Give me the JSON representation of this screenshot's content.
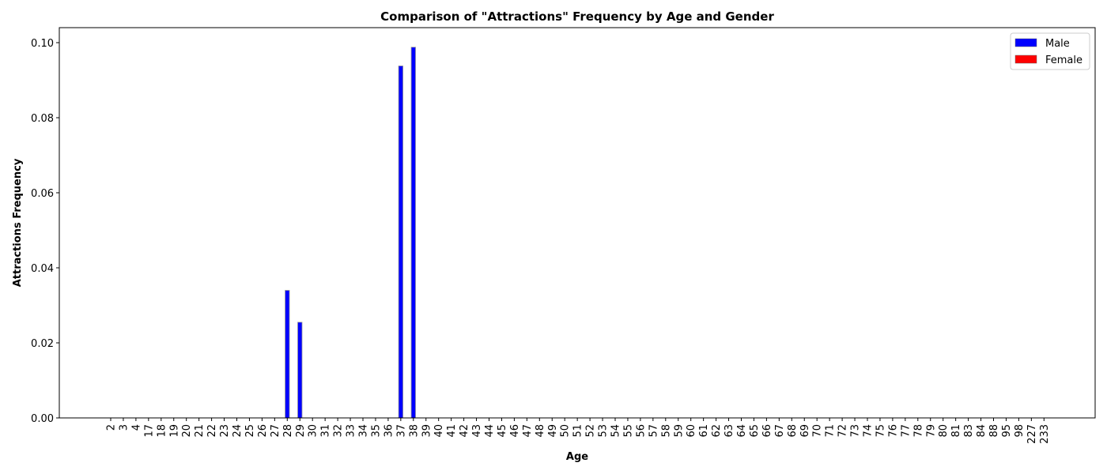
{
  "chart_data": {
    "type": "bar",
    "title": "Comparison of \"Attractions\" Frequency by Age and Gender",
    "xlabel": "Age",
    "ylabel": "Attractions Frequency",
    "ylim": [
      0,
      0.104
    ],
    "yticks": [
      "0.00",
      "0.02",
      "0.04",
      "0.06",
      "0.08",
      "0.10"
    ],
    "ytick_values": [
      0,
      0.02,
      0.04,
      0.06,
      0.08,
      0.1
    ],
    "grid": false,
    "legend_position": "top-right",
    "categories": [
      "2",
      "3",
      "4",
      "17",
      "18",
      "19",
      "20",
      "21",
      "22",
      "23",
      "24",
      "25",
      "26",
      "27",
      "28",
      "29",
      "30",
      "31",
      "32",
      "33",
      "34",
      "35",
      "36",
      "37",
      "38",
      "39",
      "40",
      "41",
      "42",
      "43",
      "44",
      "45",
      "46",
      "47",
      "48",
      "49",
      "50",
      "51",
      "52",
      "53",
      "54",
      "55",
      "56",
      "57",
      "58",
      "59",
      "60",
      "61",
      "62",
      "63",
      "64",
      "65",
      "66",
      "67",
      "68",
      "69",
      "70",
      "71",
      "72",
      "73",
      "74",
      "75",
      "76",
      "77",
      "78",
      "79",
      "80",
      "81",
      "83",
      "84",
      "88",
      "95",
      "98",
      "227",
      "233"
    ],
    "series": [
      {
        "name": "Male",
        "color": "#0000ff",
        "values": [
          0,
          0,
          0,
          0,
          0,
          0,
          0,
          0,
          0,
          0,
          0,
          0,
          0,
          0,
          0.034,
          0.0255,
          0,
          0,
          0,
          0,
          0,
          0,
          0,
          0.0938,
          0.0988,
          0,
          0,
          0,
          0,
          0,
          0,
          0,
          0,
          0,
          0,
          0,
          0,
          0,
          0,
          0,
          0,
          0,
          0,
          0,
          0,
          0,
          0,
          0,
          0,
          0,
          0,
          0,
          0,
          0,
          0,
          0,
          0,
          0,
          0,
          0,
          0,
          0,
          0,
          0,
          0,
          0,
          0,
          0,
          0,
          0,
          0,
          0,
          0,
          0,
          0
        ]
      },
      {
        "name": "Female",
        "color": "#ff0000",
        "values": [
          0,
          0,
          0,
          0,
          0,
          0,
          0,
          0,
          0,
          0,
          0,
          0,
          0,
          0,
          0,
          0,
          0,
          0,
          0,
          0,
          0,
          0,
          0,
          0,
          0,
          0,
          0,
          0,
          0,
          0,
          0,
          0,
          0,
          0,
          0,
          0,
          0,
          0,
          0,
          0,
          0,
          0,
          0,
          0,
          0,
          0,
          0,
          0,
          0,
          0,
          0,
          0,
          0,
          0,
          0,
          0,
          0,
          0,
          0,
          0,
          0,
          0,
          0,
          0,
          0,
          0,
          0,
          0,
          0,
          0,
          0,
          0,
          0,
          0,
          0
        ]
      }
    ]
  }
}
